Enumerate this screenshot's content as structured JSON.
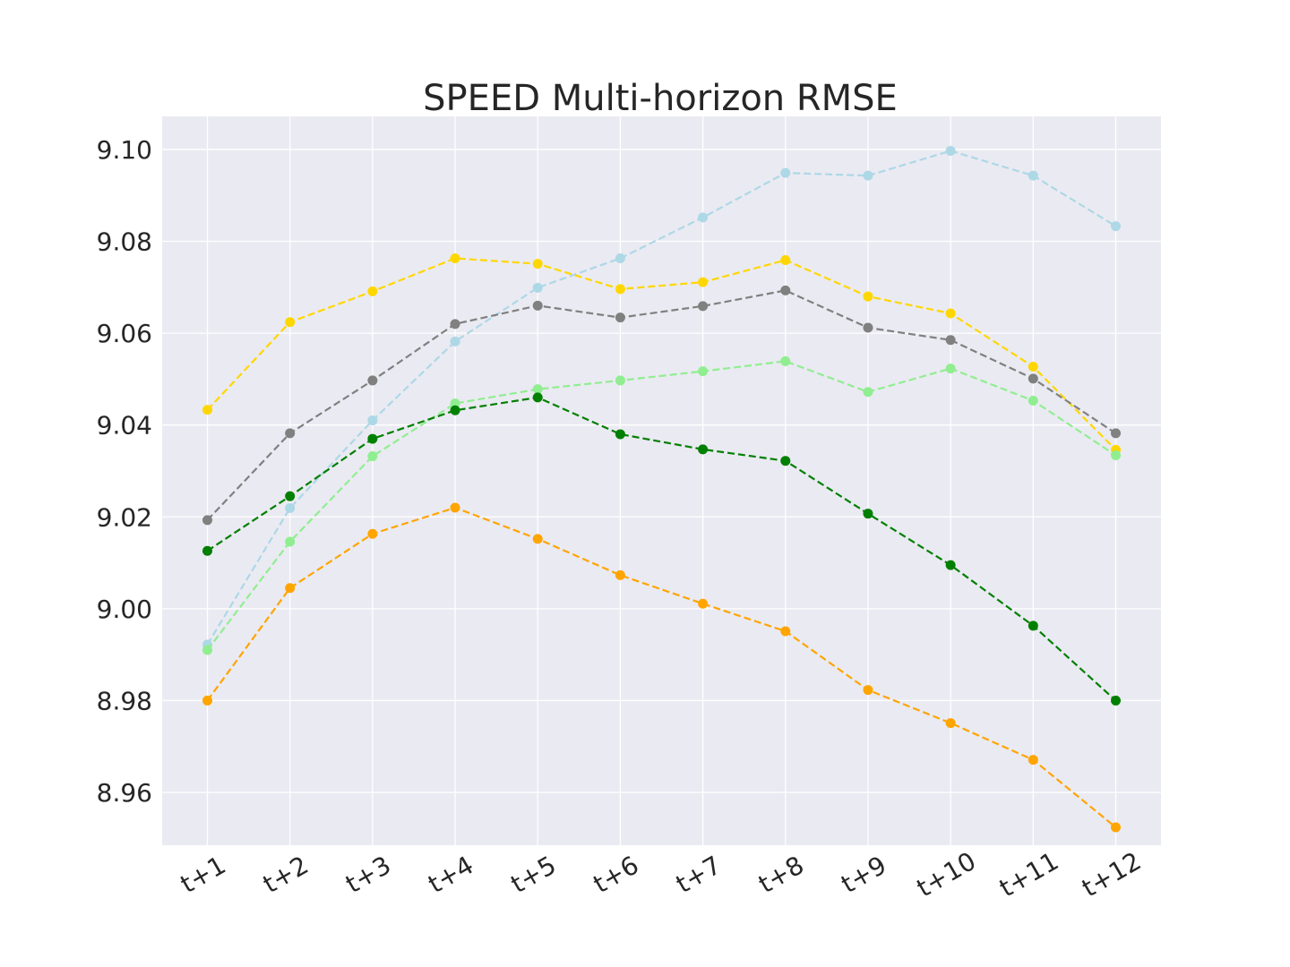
{
  "chart_data": {
    "type": "line",
    "title": "SPEED Multi-horizon RMSE",
    "xlabel": "",
    "ylabel": "",
    "categories": [
      "t+1",
      "t+2",
      "t+3",
      "t+4",
      "t+5",
      "t+6",
      "t+7",
      "t+8",
      "t+9",
      "t+10",
      "t+11",
      "t+12"
    ],
    "ylim": [
      8.9485,
      9.1072
    ],
    "yticks": [
      8.96,
      8.98,
      9.0,
      9.02,
      9.04,
      9.06,
      9.08,
      9.1
    ],
    "ytick_labels": [
      "8.96",
      "8.98",
      "9.00",
      "9.02",
      "9.04",
      "9.06",
      "9.08",
      "9.10"
    ],
    "grid": true,
    "legend": "none",
    "line_style": "dashed",
    "marker": "circle",
    "background_color": "#eaeaf2",
    "series": [
      {
        "color": "#add8e6",
        "values": [
          8.9922,
          9.0219,
          9.041,
          9.0582,
          9.0699,
          9.0763,
          9.0852,
          9.0949,
          9.0943,
          9.0997,
          9.0943,
          9.0833
        ]
      },
      {
        "color": "#ffd700",
        "values": [
          9.0433,
          9.0624,
          9.0691,
          9.0763,
          9.0751,
          9.0696,
          9.0711,
          9.0759,
          9.068,
          9.0643,
          9.0527,
          9.0346
        ]
      },
      {
        "color": "#808080",
        "values": [
          9.0193,
          9.0382,
          9.0497,
          9.062,
          9.066,
          9.0634,
          9.0659,
          9.0693,
          9.0612,
          9.0585,
          9.0501,
          9.0382
        ]
      },
      {
        "color": "#90ee90",
        "values": [
          8.991,
          9.0146,
          9.0332,
          9.0447,
          9.0478,
          9.0497,
          9.0517,
          9.0539,
          9.0472,
          9.0523,
          9.0453,
          9.0334
        ]
      },
      {
        "color": "#008000",
        "values": [
          9.0126,
          9.0245,
          9.037,
          9.0432,
          9.046,
          9.038,
          9.0347,
          9.0322,
          9.0207,
          9.0095,
          8.9963,
          8.98
        ]
      },
      {
        "color": "#ffa500",
        "values": [
          8.98,
          9.0045,
          9.0163,
          9.022,
          9.0152,
          9.0073,
          9.0011,
          8.9951,
          8.9823,
          8.9751,
          8.9671,
          8.9524
        ]
      }
    ]
  }
}
